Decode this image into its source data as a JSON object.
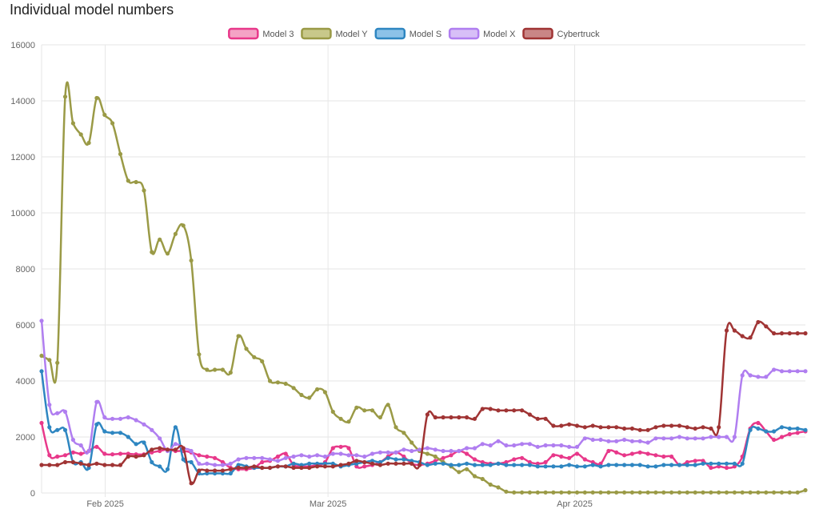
{
  "page": {
    "title": "Individual model numbers"
  },
  "chart_data": {
    "type": "line",
    "title": "Individual model numbers",
    "xlabel": "",
    "ylabel": "",
    "x_start": "2025-01-24",
    "x_end": "2025-04-30",
    "x_ticks": [
      {
        "label": "Feb 2025",
        "date": "2025-02-01"
      },
      {
        "label": "Mar 2025",
        "date": "2025-03-01"
      },
      {
        "label": "Apr 2025",
        "date": "2025-04-01"
      }
    ],
    "ylim": [
      0,
      16000
    ],
    "y_ticks": [
      "0",
      "2000",
      "4000",
      "6000",
      "8000",
      "10000",
      "12000",
      "14000",
      "16000"
    ],
    "grid": true,
    "legend_position": "top-center",
    "series": [
      {
        "name": "Model 3",
        "color": "#e8388a",
        "fill": "#f4a3c5",
        "values": [
          2500,
          1350,
          1300,
          1350,
          1450,
          1400,
          1500,
          1650,
          1400,
          1380,
          1400,
          1400,
          1380,
          1380,
          1450,
          1500,
          1550,
          1500,
          1500,
          1450,
          1350,
          1300,
          1250,
          1100,
          900,
          850,
          850,
          900,
          1100,
          1150,
          1300,
          1400,
          1000,
          950,
          950,
          1000,
          1100,
          1600,
          1650,
          1600,
          950,
          950,
          1000,
          1100,
          1300,
          1450,
          1300,
          1050,
          1000,
          1050,
          1150,
          1250,
          1350,
          1500,
          1400,
          1200,
          1100,
          1050,
          1050,
          1100,
          1200,
          1250,
          1100,
          1050,
          1100,
          1350,
          1300,
          1250,
          1400,
          1200,
          1100,
          1050,
          1500,
          1450,
          1350,
          1400,
          1450,
          1400,
          1350,
          1300,
          1300,
          1000,
          1100,
          1150,
          1150,
          900,
          950,
          900,
          950,
          1300,
          2300,
          2500,
          2200,
          1900,
          2000,
          2100,
          2150,
          2200
        ]
      },
      {
        "name": "Model Y",
        "color": "#9a9a46",
        "fill": "#c8c88a",
        "values": [
          4900,
          4750,
          4650,
          14150,
          13200,
          12800,
          12500,
          14100,
          13500,
          13200,
          12100,
          11150,
          11100,
          10800,
          8600,
          9050,
          8550,
          9250,
          9550,
          8300,
          4950,
          4400,
          4400,
          4400,
          4300,
          5600,
          5150,
          4850,
          4700,
          4000,
          3950,
          3900,
          3750,
          3500,
          3400,
          3700,
          3600,
          2900,
          2650,
          2550,
          3050,
          2950,
          2950,
          2700,
          3150,
          2350,
          2150,
          1800,
          1500,
          1400,
          1300,
          1100,
          950,
          750,
          850,
          600,
          500,
          300,
          200,
          50,
          20,
          20,
          20,
          20,
          20,
          20,
          20,
          20,
          20,
          20,
          20,
          20,
          20,
          20,
          20,
          20,
          20,
          20,
          20,
          20,
          20,
          20,
          20,
          20,
          20,
          20,
          20,
          20,
          20,
          20,
          20,
          20,
          20,
          20,
          20,
          20,
          20,
          100
        ]
      },
      {
        "name": "Model S",
        "color": "#2e86c1",
        "fill": "#8cc2e8",
        "values": [
          4350,
          2350,
          2250,
          2250,
          1100,
          1100,
          900,
          2450,
          2200,
          2150,
          2150,
          2000,
          1750,
          1800,
          1100,
          950,
          850,
          2350,
          1200,
          1100,
          700,
          700,
          700,
          700,
          700,
          1000,
          950,
          900,
          900,
          900,
          950,
          950,
          1050,
          1000,
          1050,
          1050,
          1050,
          1050,
          950,
          1000,
          1050,
          1100,
          1150,
          1100,
          1250,
          1200,
          1200,
          1150,
          1100,
          1000,
          1050,
          1050,
          1000,
          1000,
          1050,
          1000,
          1000,
          1000,
          1050,
          1000,
          1000,
          1000,
          1000,
          950,
          950,
          950,
          950,
          1000,
          950,
          950,
          1000,
          950,
          1000,
          1000,
          1000,
          1000,
          1000,
          950,
          950,
          1000,
          1000,
          1000,
          1000,
          1000,
          1050,
          1050,
          1050,
          1050,
          1050,
          1050,
          2250,
          2300,
          2200,
          2200,
          2350,
          2300,
          2300,
          2250
        ]
      },
      {
        "name": "Model X",
        "color": "#b07ef0",
        "fill": "#d7bff7",
        "values": [
          6150,
          3150,
          2850,
          2900,
          1900,
          1700,
          1500,
          3250,
          2700,
          2650,
          2650,
          2700,
          2600,
          2450,
          2250,
          1950,
          1500,
          1750,
          1600,
          1500,
          1050,
          1050,
          1000,
          1000,
          1050,
          1200,
          1250,
          1250,
          1250,
          1200,
          1150,
          1250,
          1300,
          1350,
          1300,
          1350,
          1300,
          1400,
          1400,
          1350,
          1350,
          1300,
          1400,
          1450,
          1450,
          1450,
          1550,
          1500,
          1550,
          1600,
          1550,
          1500,
          1500,
          1500,
          1600,
          1600,
          1750,
          1700,
          1850,
          1700,
          1700,
          1750,
          1750,
          1650,
          1700,
          1700,
          1700,
          1650,
          1650,
          1950,
          1900,
          1900,
          1850,
          1850,
          1900,
          1850,
          1850,
          1800,
          1950,
          1950,
          1950,
          2000,
          1950,
          1950,
          1950,
          2000,
          2000,
          2000,
          2000,
          4200,
          4200,
          4150,
          4150,
          4400,
          4350,
          4350,
          4350,
          4350
        ]
      },
      {
        "name": "Cybertruck",
        "color": "#a03434",
        "fill": "#c98686",
        "values": [
          1000,
          1000,
          1000,
          1100,
          1100,
          1050,
          1000,
          1050,
          1000,
          1000,
          1000,
          1300,
          1300,
          1350,
          1550,
          1600,
          1550,
          1550,
          1600,
          350,
          800,
          800,
          800,
          800,
          850,
          900,
          900,
          950,
          900,
          900,
          950,
          950,
          900,
          900,
          900,
          950,
          950,
          950,
          1000,
          1050,
          1150,
          1100,
          1050,
          1000,
          1050,
          1050,
          1050,
          1050,
          1000,
          2800,
          2700,
          2700,
          2700,
          2700,
          2700,
          2650,
          3000,
          3000,
          2950,
          2950,
          2950,
          2950,
          2800,
          2650,
          2650,
          2400,
          2400,
          2450,
          2400,
          2350,
          2400,
          2350,
          2350,
          2350,
          2300,
          2300,
          2250,
          2250,
          2350,
          2400,
          2400,
          2400,
          2350,
          2300,
          2350,
          2300,
          2350,
          5800,
          5800,
          5600,
          5550,
          6100,
          5950,
          5700,
          5700,
          5700,
          5700,
          5700
        ]
      }
    ]
  }
}
